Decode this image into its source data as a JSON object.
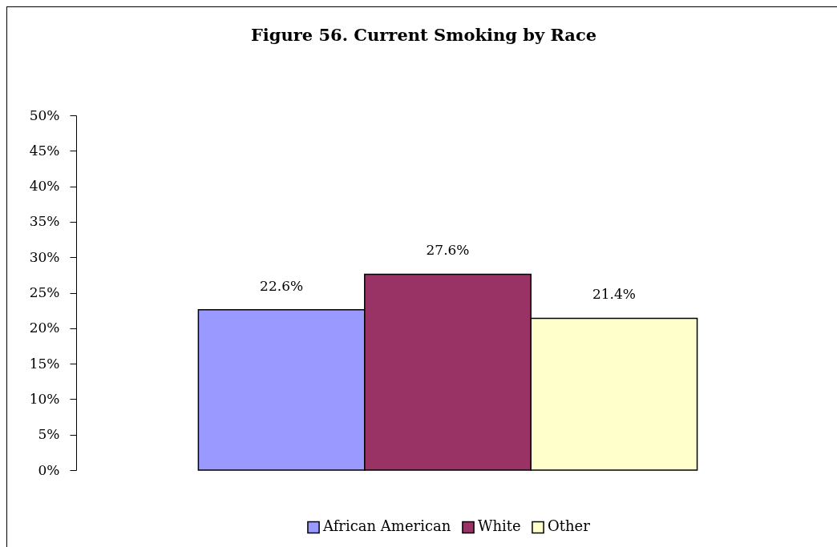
{
  "chart_data": {
    "type": "bar",
    "title": "Figure 56. Current Smoking by Race",
    "categories": [
      null
    ],
    "series": [
      {
        "name": "African American",
        "color": "#9999ff",
        "values": [
          22.6
        ],
        "value_labels": [
          "22.6%"
        ]
      },
      {
        "name": "White",
        "color": "#993366",
        "values": [
          27.6
        ],
        "value_labels": [
          "27.6%"
        ]
      },
      {
        "name": "Other",
        "color": "#ffffcc",
        "values": [
          21.4
        ],
        "value_labels": [
          "21.4%"
        ]
      }
    ],
    "ylim": [
      0,
      50
    ],
    "yticks": [
      {
        "value": 0,
        "label": "0%"
      },
      {
        "value": 5,
        "label": "5%"
      },
      {
        "value": 10,
        "label": "10%"
      },
      {
        "value": 15,
        "label": "15%"
      },
      {
        "value": 20,
        "label": "20%"
      },
      {
        "value": 25,
        "label": "25%"
      },
      {
        "value": 30,
        "label": "30%"
      },
      {
        "value": 35,
        "label": "35%"
      },
      {
        "value": 40,
        "label": "40%"
      },
      {
        "value": 45,
        "label": "45%"
      },
      {
        "value": 50,
        "label": "50%"
      }
    ],
    "legend": "bottom"
  }
}
